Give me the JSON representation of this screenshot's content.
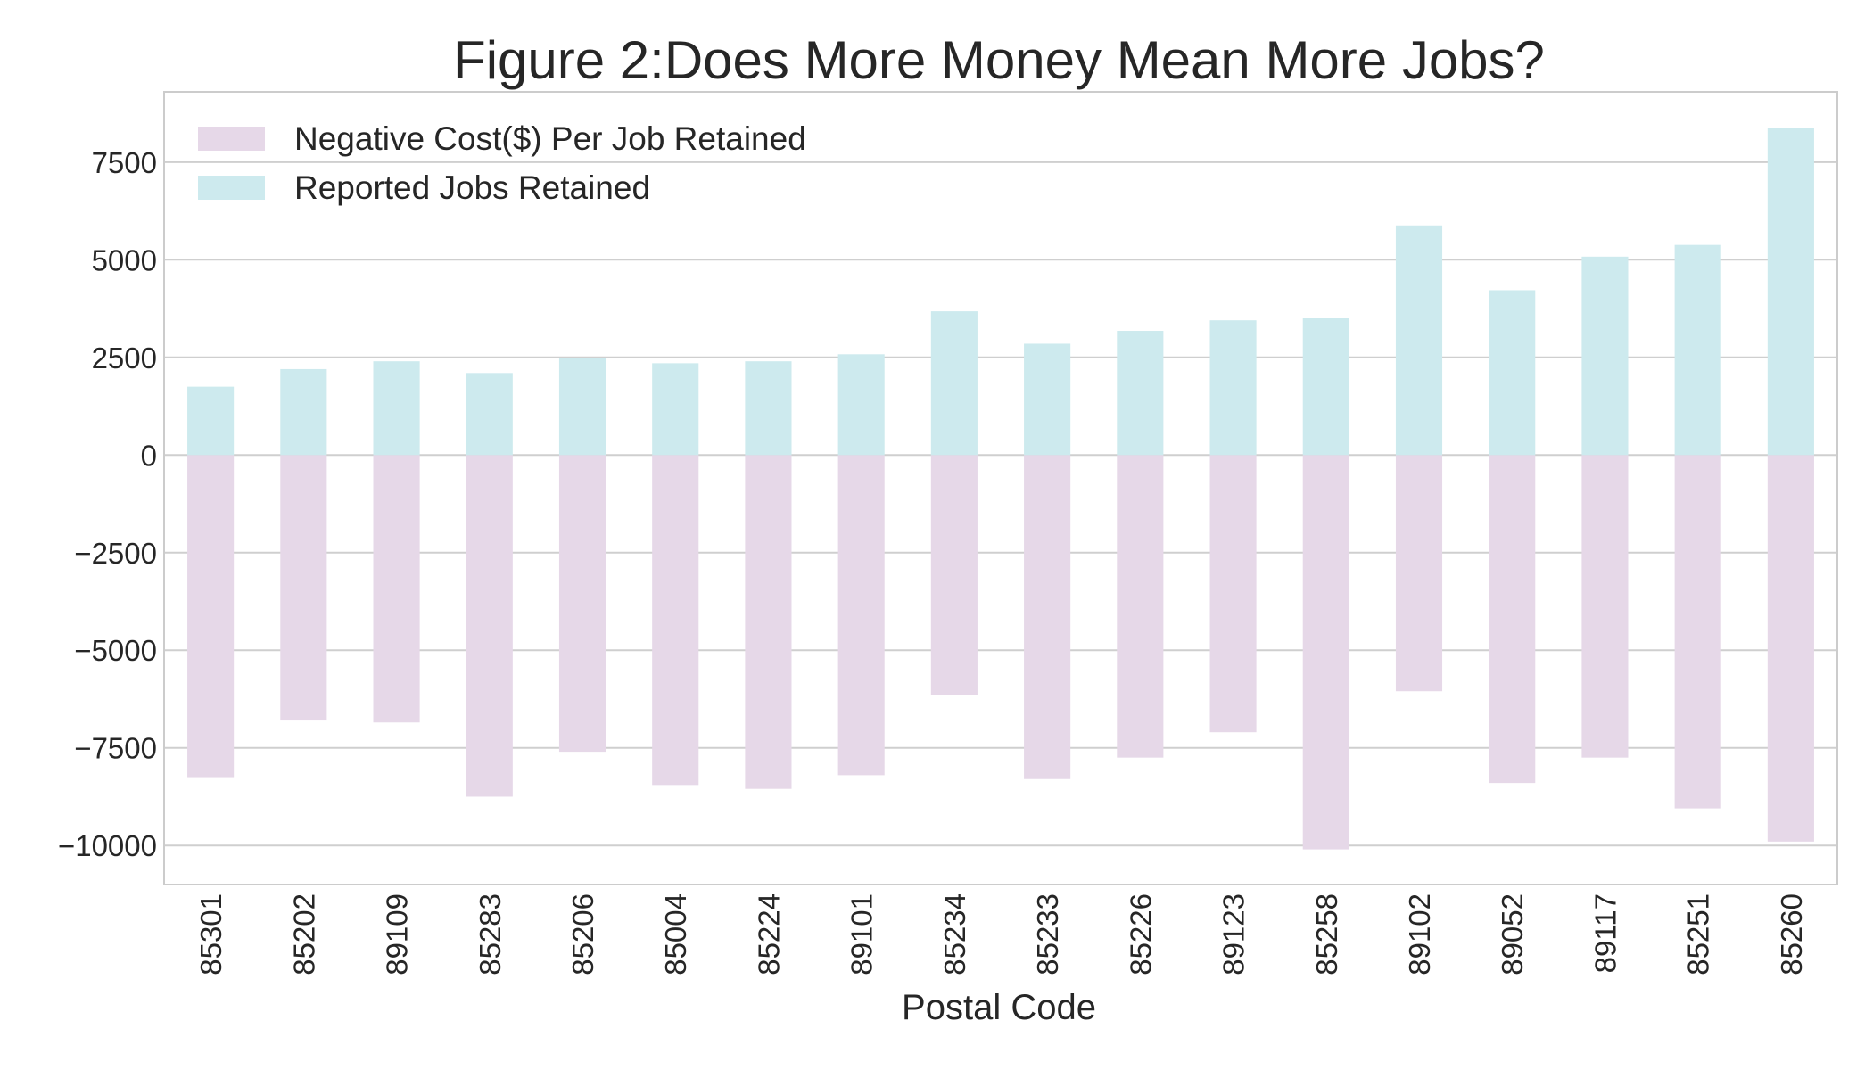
{
  "chart_data": {
    "type": "bar",
    "title": "Figure 2:Does More Money Mean More Jobs?",
    "xlabel": "Postal Code",
    "ylabel": "",
    "ylim": [
      -11000,
      9300
    ],
    "yticks": [
      7500,
      5000,
      2500,
      0,
      -2500,
      -5000,
      -7500,
      -10000
    ],
    "ytick_labels": [
      "7500",
      "5000",
      "2500",
      "0",
      "−2500",
      "−5000",
      "−7500",
      "−10000"
    ],
    "grid": true,
    "legend_position": "top-left",
    "categories": [
      "85301",
      "85202",
      "89109",
      "85283",
      "85206",
      "85004",
      "85224",
      "89101",
      "85234",
      "85233",
      "85226",
      "89123",
      "85258",
      "89102",
      "89052",
      "89117",
      "85251",
      "85260"
    ],
    "series": [
      {
        "name": "Negative Cost($) Per Job Retained",
        "color": "#e6d8e8",
        "values": [
          -8250,
          -6800,
          -6850,
          -8750,
          -7600,
          -8450,
          -8550,
          -8200,
          -6150,
          -8300,
          -7750,
          -7100,
          -10100,
          -6050,
          -8400,
          -7750,
          -9050,
          -9900
        ]
      },
      {
        "name": "Reported Jobs Retained",
        "color": "#cdeaee",
        "values": [
          1750,
          2200,
          2400,
          2100,
          2480,
          2350,
          2400,
          2580,
          3680,
          2850,
          3180,
          3450,
          3500,
          5880,
          4220,
          5080,
          5380,
          8380
        ]
      }
    ]
  }
}
